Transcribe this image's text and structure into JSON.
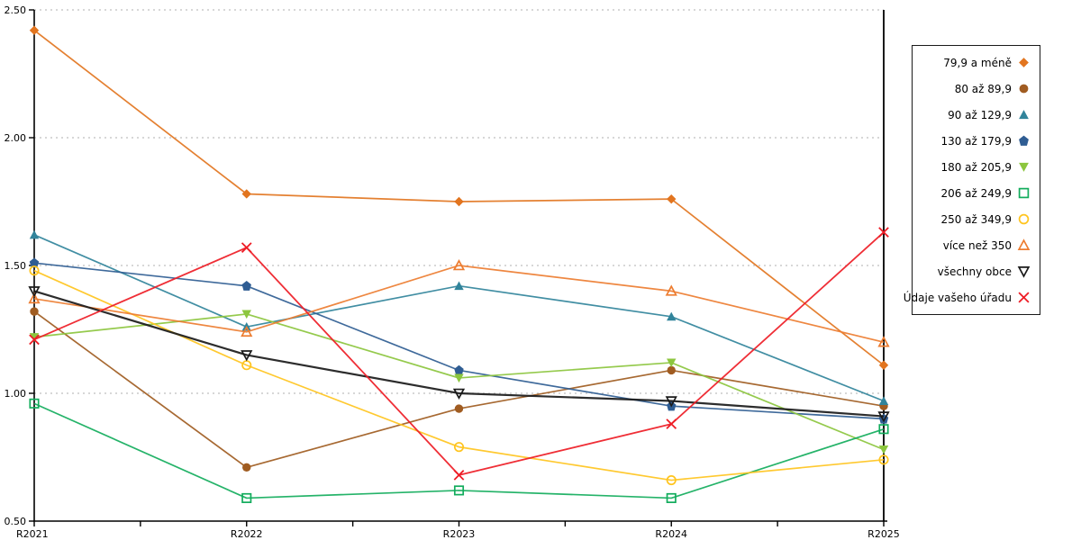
{
  "chart_data": {
    "type": "line",
    "title": "",
    "xlabel": "",
    "ylabel": "",
    "categories": [
      "R2021",
      "R2022",
      "R2023",
      "R2024",
      "R2025"
    ],
    "y_tick_labels": [
      "2.50",
      "2.00",
      "1.50",
      "1.00",
      "0.50"
    ],
    "ylim": [
      0.5,
      2.5
    ],
    "grid": "horizontal-dotted",
    "grid_color": "#bfbfbf",
    "axis_color": "#000000",
    "legend_position": "right",
    "series": [
      {
        "name": "79,9 a méně",
        "marker": "diamond",
        "fill": "filled",
        "color": "#e2751f",
        "line_width": 1.7,
        "values": [
          2.42,
          1.78,
          1.75,
          1.76,
          1.11
        ]
      },
      {
        "name": "80 až 89,9",
        "marker": "circle",
        "fill": "filled",
        "color": "#a05c21",
        "line_width": 1.7,
        "values": [
          1.32,
          0.71,
          0.94,
          1.09,
          0.95
        ]
      },
      {
        "name": "90 až 129,9",
        "marker": "triangle-up",
        "fill": "filled",
        "color": "#31849b",
        "line_width": 1.7,
        "values": [
          1.62,
          1.26,
          1.42,
          1.3,
          0.97
        ]
      },
      {
        "name": "130 až 179,9",
        "marker": "pentagon",
        "fill": "filled",
        "color": "#2f5d93",
        "line_width": 1.7,
        "values": [
          1.51,
          1.42,
          1.09,
          0.95,
          0.9
        ]
      },
      {
        "name": "180 až 205,9",
        "marker": "triangle-down",
        "fill": "filled",
        "color": "#8cc63e",
        "line_width": 1.7,
        "values": [
          1.22,
          1.31,
          1.06,
          1.12,
          0.78
        ]
      },
      {
        "name": "206 až 249,9",
        "marker": "square",
        "fill": "open",
        "color": "#12ac5c",
        "line_width": 1.7,
        "values": [
          0.96,
          0.59,
          0.62,
          0.59,
          0.86
        ]
      },
      {
        "name": "250 až 349,9",
        "marker": "circle",
        "fill": "open",
        "color": "#ffc41e",
        "line_width": 1.7,
        "values": [
          1.48,
          1.11,
          0.79,
          0.66,
          0.74
        ]
      },
      {
        "name": "více než 350",
        "marker": "triangle-up",
        "fill": "open",
        "color": "#ed7d31",
        "line_width": 1.7,
        "values": [
          1.37,
          1.24,
          1.5,
          1.4,
          1.2
        ]
      },
      {
        "name": "všechny obce",
        "marker": "triangle-down",
        "fill": "open",
        "color": "#1a1a1a",
        "line_width": 2.2,
        "values": [
          1.4,
          1.15,
          1.0,
          0.97,
          0.91
        ]
      },
      {
        "name": "Údaje vašeho úřadu",
        "marker": "x",
        "fill": "open",
        "color": "#ee1c25",
        "line_width": 1.8,
        "values": [
          1.21,
          1.57,
          0.68,
          0.88,
          1.63
        ]
      }
    ]
  }
}
